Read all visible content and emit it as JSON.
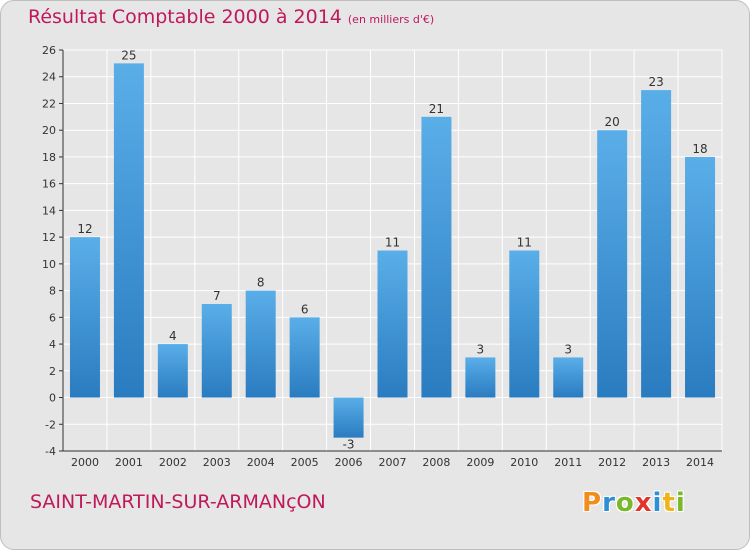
{
  "header": {
    "title": "Résultat Comptable 2000 à 2014",
    "subtitle": "(en milliers d'€)"
  },
  "footer": {
    "commune": "SAINT-MARTIN-SUR-ARMANçON",
    "logo": "Proxiti",
    "logo_colors": [
      "#f28c1a",
      "#2d8fd5",
      "#79b829",
      "#e2342a",
      "#2d8fd5",
      "#f2b31a",
      "#79b829"
    ]
  },
  "colors": {
    "bar_light": "#5aaee8",
    "bar_dark": "#2a7cc0",
    "grid": "#ffffff",
    "plot_bg": "#e6e6e6",
    "title": "#c0185a"
  },
  "chart_data": {
    "type": "bar",
    "title": "Résultat Comptable 2000 à 2014",
    "xlabel": "",
    "ylabel": "",
    "categories": [
      "2000",
      "2001",
      "2002",
      "2003",
      "2004",
      "2005",
      "2006",
      "2007",
      "2008",
      "2009",
      "2010",
      "2011",
      "2012",
      "2013",
      "2014"
    ],
    "values": [
      12,
      25,
      4,
      7,
      8,
      6,
      -3,
      11,
      21,
      3,
      11,
      3,
      20,
      23,
      18
    ],
    "ylim": [
      -4,
      26
    ],
    "yticks": [
      -4,
      -2,
      0,
      2,
      4,
      6,
      8,
      10,
      12,
      14,
      16,
      18,
      20,
      22,
      24,
      26
    ],
    "grid": true,
    "legend": "none"
  }
}
